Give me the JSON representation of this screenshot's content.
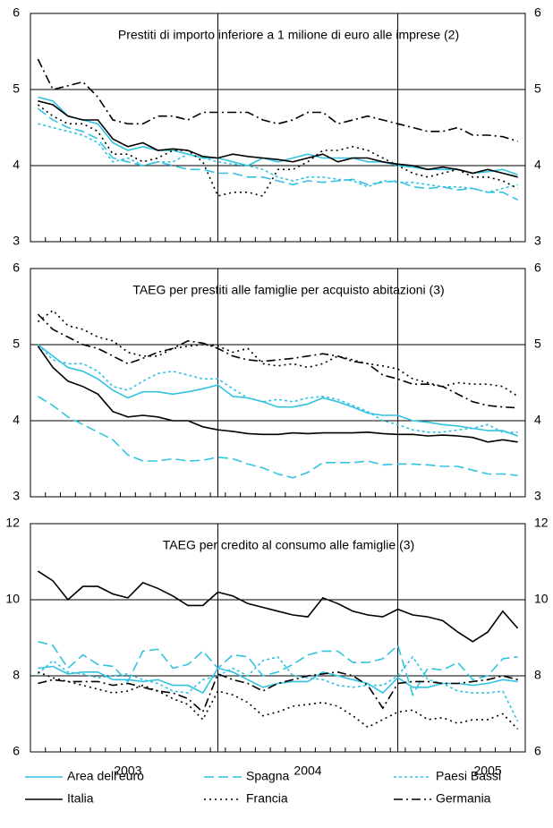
{
  "chart_data": [
    {
      "type": "line",
      "title": "Prestiti di importo inferiore a 1 milione di euro alle imprese (2)",
      "categories": [
        null,
        null,
        null,
        null,
        null,
        null,
        null,
        null,
        null,
        null,
        null,
        null,
        null,
        null,
        null,
        null,
        null,
        null,
        null,
        null,
        null,
        null,
        null,
        null,
        null,
        null,
        null,
        null,
        null,
        null,
        null,
        null,
        null
      ],
      "ylim": [
        3,
        6
      ],
      "yticks": [
        3,
        4,
        5,
        6
      ],
      "grid": true,
      "series": [
        {
          "name": "Area dell'euro",
          "color": "#33c3e0",
          "dash": "solid",
          "values": [
            4.9,
            4.85,
            4.65,
            4.6,
            4.55,
            4.3,
            4.2,
            4.25,
            4.2,
            4.2,
            4.15,
            4.1,
            4.1,
            4.05,
            4.0,
            4.1,
            4.05,
            4.1,
            4.15,
            4.1,
            4.1,
            4.1,
            4.05,
            4.05,
            4.0,
            3.98,
            3.95,
            3.95,
            3.95,
            3.9,
            3.92,
            3.95,
            3.88
          ]
        },
        {
          "name": "Spagna",
          "color": "#33c3e0",
          "dash": "long-dash",
          "values": [
            4.75,
            4.6,
            4.5,
            4.45,
            4.35,
            4.1,
            4.05,
            4.0,
            4.05,
            4.0,
            3.95,
            3.95,
            3.9,
            3.9,
            3.85,
            3.85,
            3.8,
            3.75,
            3.8,
            3.78,
            3.8,
            3.82,
            3.75,
            3.78,
            3.8,
            3.72,
            3.7,
            3.72,
            3.68,
            3.7,
            3.65,
            3.65,
            3.55
          ]
        },
        {
          "name": "Paesi Bassi",
          "color": "#33c3e0",
          "dash": "short-dash",
          "values": [
            4.55,
            4.5,
            4.45,
            4.4,
            4.3,
            4.05,
            4.1,
            4.0,
            4.05,
            4.05,
            4.15,
            4.1,
            4.05,
            4.02,
            4.0,
            3.95,
            3.85,
            3.8,
            3.85,
            3.85,
            3.82,
            3.8,
            3.72,
            3.8,
            3.78,
            3.78,
            3.75,
            3.72,
            3.72,
            3.7,
            3.65,
            3.7,
            3.75
          ]
        },
        {
          "name": "Italia",
          "color": "#000000",
          "dash": "solid",
          "values": [
            4.85,
            4.8,
            4.65,
            4.6,
            4.6,
            4.35,
            4.25,
            4.3,
            4.2,
            4.22,
            4.2,
            4.12,
            4.1,
            4.15,
            4.12,
            4.1,
            4.08,
            4.05,
            4.1,
            4.15,
            4.05,
            4.1,
            4.1,
            4.05,
            4.02,
            4.0,
            3.95,
            3.98,
            3.95,
            3.9,
            3.95,
            3.9,
            3.85
          ]
        },
        {
          "name": "Francia",
          "color": "#000000",
          "dash": "dotted",
          "values": [
            4.8,
            4.65,
            4.55,
            4.55,
            4.45,
            4.15,
            4.15,
            4.05,
            4.1,
            4.2,
            4.2,
            4.05,
            3.6,
            3.65,
            3.65,
            3.6,
            3.95,
            3.95,
            4.05,
            4.2,
            4.2,
            4.25,
            4.2,
            4.1,
            4.0,
            3.9,
            3.85,
            3.9,
            3.95,
            3.85,
            3.85,
            3.8,
            3.7
          ]
        },
        {
          "name": "Germania",
          "color": "#000000",
          "dash": "dash-dot",
          "values": [
            5.4,
            5.0,
            5.05,
            5.1,
            4.9,
            4.6,
            4.55,
            4.55,
            4.65,
            4.65,
            4.6,
            4.7,
            4.7,
            4.7,
            4.7,
            4.6,
            4.55,
            4.6,
            4.7,
            4.7,
            4.55,
            4.6,
            4.65,
            4.6,
            4.55,
            4.5,
            4.45,
            4.45,
            4.5,
            4.4,
            4.4,
            4.38,
            4.32
          ]
        }
      ]
    },
    {
      "type": "line",
      "title": "TAEG per prestiti alle famiglie per acquisto abitazioni (3)",
      "categories": [
        null,
        null,
        null,
        null,
        null,
        null,
        null,
        null,
        null,
        null,
        null,
        null,
        null,
        null,
        null,
        null,
        null,
        null,
        null,
        null,
        null,
        null,
        null,
        null,
        null,
        null,
        null,
        null,
        null,
        null,
        null,
        null,
        null
      ],
      "ylim": [
        3,
        6
      ],
      "yticks": [
        3,
        4,
        5,
        6
      ],
      "grid": true,
      "series": [
        {
          "name": "Area dell'euro",
          "color": "#33c3e0",
          "dash": "solid",
          "values": [
            5.0,
            4.85,
            4.7,
            4.65,
            4.55,
            4.4,
            4.3,
            4.38,
            4.38,
            4.35,
            4.38,
            4.42,
            4.47,
            4.32,
            4.3,
            4.25,
            4.18,
            4.18,
            4.22,
            4.3,
            4.25,
            4.18,
            4.1,
            4.07,
            4.07,
            4.0,
            3.98,
            3.95,
            3.93,
            3.9,
            3.87,
            3.87,
            3.8
          ]
        },
        {
          "name": "Spagna",
          "color": "#33c3e0",
          "dash": "long-dash",
          "values": [
            4.32,
            4.2,
            4.05,
            3.95,
            3.85,
            3.75,
            3.55,
            3.47,
            3.47,
            3.5,
            3.47,
            3.48,
            3.52,
            3.5,
            3.43,
            3.38,
            3.3,
            3.25,
            3.32,
            3.45,
            3.45,
            3.45,
            3.47,
            3.42,
            3.43,
            3.43,
            3.42,
            3.4,
            3.4,
            3.35,
            3.3,
            3.3,
            3.28
          ]
        },
        {
          "name": "Paesi Bassi",
          "color": "#33c3e0",
          "dash": "short-dash",
          "values": [
            5.0,
            4.8,
            4.75,
            4.75,
            4.65,
            4.45,
            4.4,
            4.52,
            4.62,
            4.65,
            4.6,
            4.55,
            4.55,
            4.42,
            4.3,
            4.25,
            4.28,
            4.25,
            4.3,
            4.32,
            4.28,
            4.2,
            4.12,
            4.0,
            3.95,
            3.88,
            3.85,
            3.85,
            3.88,
            3.9,
            3.95,
            3.85,
            3.85
          ]
        },
        {
          "name": "Italia",
          "color": "#000000",
          "dash": "solid",
          "values": [
            4.98,
            4.7,
            4.52,
            4.45,
            4.35,
            4.12,
            4.05,
            4.07,
            4.05,
            4.0,
            4.0,
            3.92,
            3.88,
            3.86,
            3.83,
            3.82,
            3.82,
            3.84,
            3.83,
            3.84,
            3.84,
            3.84,
            3.85,
            3.83,
            3.82,
            3.82,
            3.8,
            3.81,
            3.8,
            3.78,
            3.72,
            3.75,
            3.72
          ]
        },
        {
          "name": "Francia",
          "color": "#000000",
          "dash": "dotted",
          "values": [
            5.3,
            5.45,
            5.25,
            5.2,
            5.1,
            5.05,
            4.9,
            4.85,
            4.85,
            4.95,
            4.98,
            5.0,
            4.98,
            4.9,
            4.95,
            4.75,
            4.72,
            4.75,
            4.7,
            4.75,
            4.85,
            4.8,
            4.75,
            4.72,
            4.68,
            4.55,
            4.5,
            4.45,
            4.5,
            4.48,
            4.48,
            4.45,
            4.32
          ]
        },
        {
          "name": "Germania",
          "color": "#000000",
          "dash": "dash-dot",
          "values": [
            5.4,
            5.2,
            5.1,
            5.0,
            4.95,
            4.85,
            4.75,
            4.82,
            4.9,
            4.95,
            5.05,
            5.02,
            4.95,
            4.85,
            4.8,
            4.78,
            4.8,
            4.82,
            4.85,
            4.88,
            4.85,
            4.78,
            4.75,
            4.6,
            4.55,
            4.48,
            4.48,
            4.45,
            4.35,
            4.25,
            4.2,
            4.18,
            4.17
          ]
        }
      ]
    },
    {
      "type": "line",
      "title": "TAEG per credito al consumo alle famiglie (3)",
      "categories": [
        null,
        null,
        null,
        null,
        null,
        null,
        "2003",
        null,
        null,
        null,
        null,
        null,
        null,
        null,
        null,
        null,
        null,
        null,
        "2004",
        null,
        null,
        null,
        null,
        null,
        null,
        null,
        null,
        null,
        null,
        null,
        "2005",
        null,
        null
      ],
      "ylim": [
        6,
        12
      ],
      "yticks": [
        6,
        8,
        10,
        12
      ],
      "grid": true,
      "series": [
        {
          "name": "Area dell'euro",
          "color": "#33c3e0",
          "dash": "solid",
          "values": [
            8.2,
            8.25,
            8.05,
            8.1,
            8.1,
            7.9,
            7.9,
            7.85,
            7.9,
            7.75,
            7.75,
            7.55,
            8.2,
            8.1,
            7.9,
            7.7,
            7.8,
            7.85,
            7.85,
            8.1,
            8.0,
            7.9,
            7.8,
            7.55,
            7.95,
            7.7,
            7.7,
            7.8,
            7.8,
            7.75,
            7.8,
            7.9,
            7.85
          ]
        },
        {
          "name": "Spagna",
          "color": "#33c3e0",
          "dash": "long-dash",
          "values": [
            8.9,
            8.8,
            8.2,
            8.55,
            8.3,
            8.25,
            7.85,
            8.65,
            8.7,
            8.2,
            8.3,
            8.65,
            8.2,
            8.55,
            8.5,
            8.0,
            8.1,
            8.3,
            8.55,
            8.65,
            8.65,
            8.35,
            8.35,
            8.45,
            8.8,
            7.5,
            8.2,
            8.15,
            8.35,
            7.9,
            8.0,
            8.45,
            8.5
          ]
        },
        {
          "name": "Paesi Bassi",
          "color": "#33c3e0",
          "dash": "short-dash",
          "values": [
            8.05,
            8.4,
            8.1,
            8.05,
            7.95,
            8.0,
            8.05,
            7.9,
            7.8,
            7.6,
            7.55,
            7.9,
            8.0,
            8.2,
            8.0,
            8.4,
            8.5,
            8.0,
            7.95,
            7.9,
            7.75,
            7.7,
            7.75,
            7.75,
            8.0,
            8.5,
            7.9,
            7.8,
            7.6,
            7.55,
            7.55,
            7.6,
            6.8
          ]
        },
        {
          "name": "Italia",
          "color": "#000000",
          "dash": "solid",
          "values": [
            10.75,
            10.5,
            10.0,
            10.35,
            10.35,
            10.15,
            10.05,
            10.45,
            10.3,
            10.1,
            9.85,
            9.85,
            10.2,
            10.1,
            9.9,
            9.8,
            9.7,
            9.6,
            9.55,
            10.05,
            9.9,
            9.7,
            9.6,
            9.55,
            9.75,
            9.6,
            9.55,
            9.45,
            9.15,
            8.9,
            9.15,
            9.7,
            9.25
          ]
        },
        {
          "name": "Francia",
          "color": "#000000",
          "dash": "dotted",
          "values": [
            8.1,
            7.95,
            7.85,
            7.75,
            7.65,
            7.55,
            7.6,
            7.75,
            7.6,
            7.4,
            7.25,
            6.85,
            7.6,
            7.5,
            7.3,
            6.95,
            7.05,
            7.2,
            7.25,
            7.3,
            7.2,
            6.95,
            6.65,
            6.85,
            7.05,
            7.1,
            6.85,
            6.9,
            6.75,
            6.85,
            6.85,
            7.0,
            6.6
          ]
        },
        {
          "name": "Germania",
          "color": "#000000",
          "dash": "dash-dot",
          "values": [
            7.8,
            7.9,
            7.85,
            7.85,
            7.85,
            7.75,
            7.8,
            7.7,
            7.6,
            7.55,
            7.4,
            7.05,
            8.05,
            7.9,
            7.8,
            7.6,
            7.8,
            7.9,
            8.0,
            8.05,
            8.1,
            8.0,
            7.75,
            7.15,
            7.8,
            7.85,
            7.85,
            7.8,
            7.8,
            7.85,
            7.9,
            8.0,
            7.9
          ]
        }
      ]
    }
  ]
}
